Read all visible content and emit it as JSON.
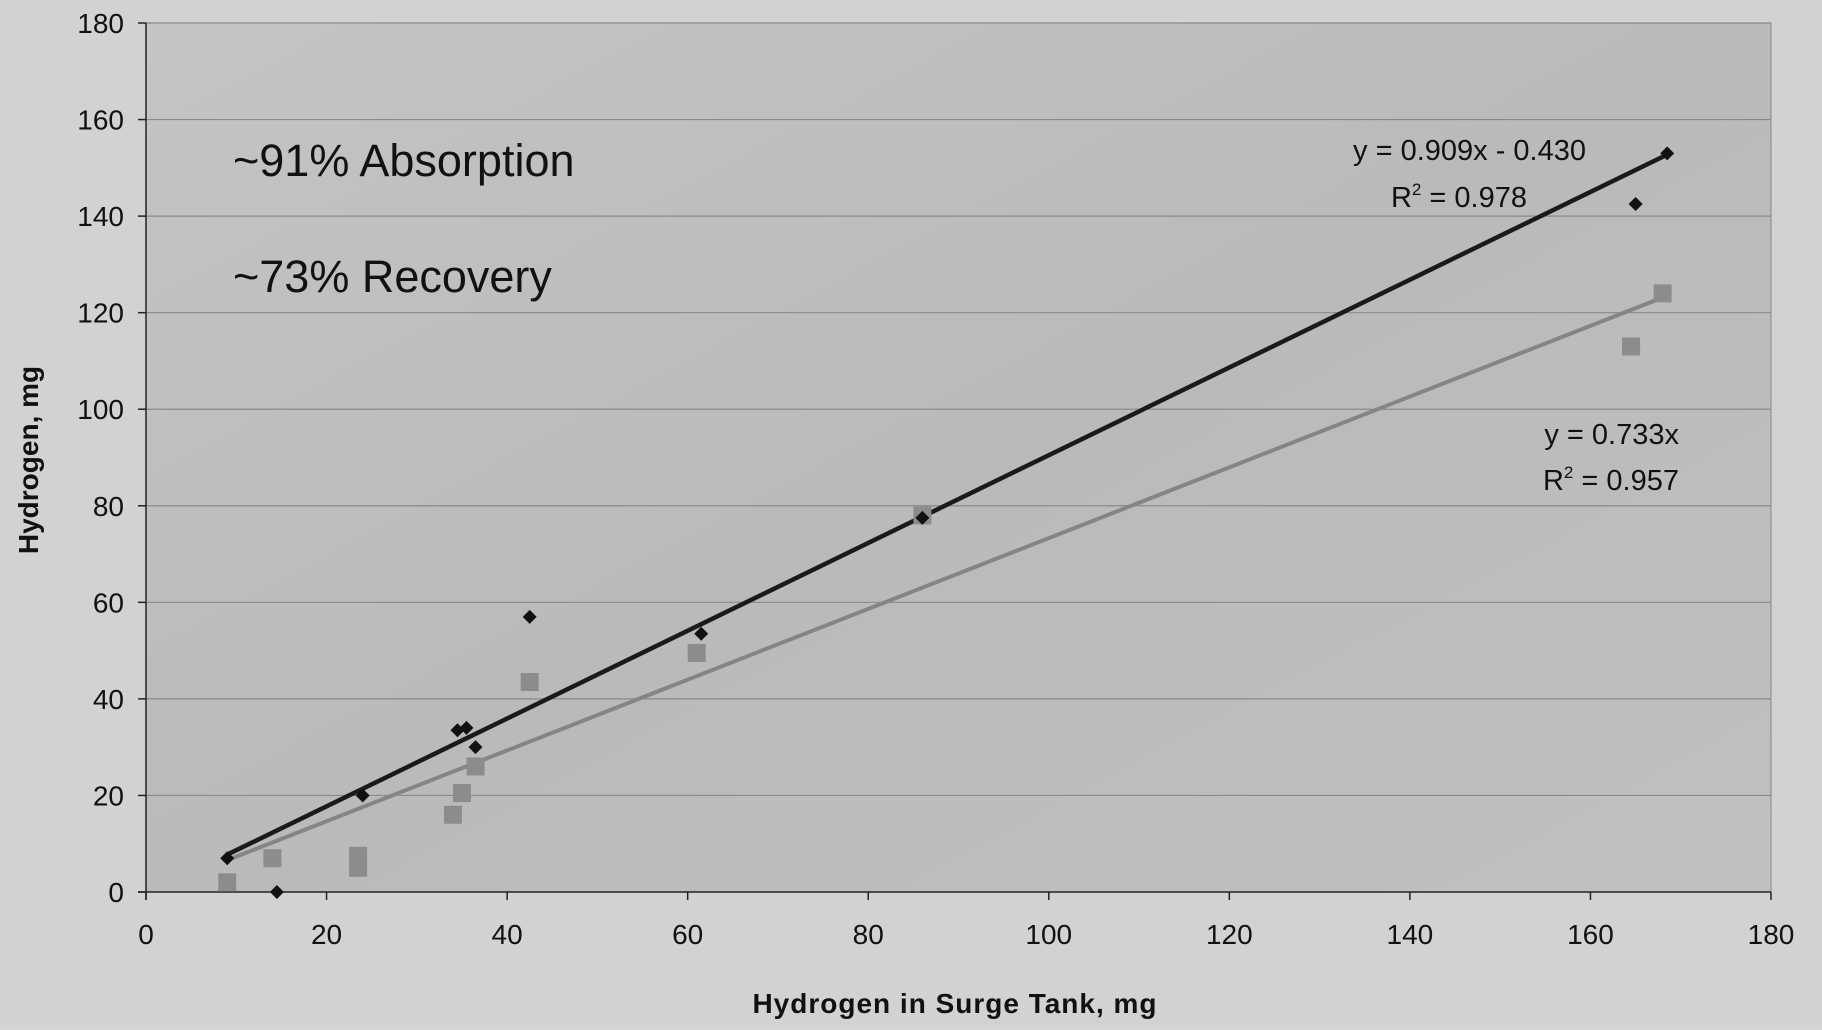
{
  "chart_data": {
    "type": "scatter",
    "title": "",
    "xlabel": "Hydrogen in Surge Tank, mg",
    "ylabel": "Hydrogen, mg",
    "xlim": [
      0,
      180
    ],
    "ylim": [
      0,
      180
    ],
    "x_ticks": [
      0,
      20,
      40,
      60,
      80,
      100,
      120,
      140,
      160,
      180
    ],
    "y_ticks": [
      0,
      20,
      40,
      60,
      80,
      100,
      120,
      140,
      160,
      180
    ],
    "grid": "horizontal",
    "legend": "none",
    "annotations": [
      "~91% Absorption",
      "~73% Recovery"
    ],
    "series": [
      {
        "marker": "diamond",
        "color": "#111111",
        "points": [
          [
            9,
            7
          ],
          [
            14.5,
            0
          ],
          [
            24,
            20
          ],
          [
            34.5,
            33.5
          ],
          [
            35.5,
            34
          ],
          [
            36.5,
            30
          ],
          [
            42.5,
            57
          ],
          [
            61.5,
            53.5
          ],
          [
            86,
            77.5
          ],
          [
            165,
            142.5
          ],
          [
            168.5,
            153
          ]
        ],
        "trendline": {
          "slope": 0.909,
          "intercept": -0.43,
          "x_range": [
            9,
            168.5
          ],
          "color": "#1a1a1a"
        },
        "equation": "y = 0.909x - 0.430",
        "r2_prefix": "R",
        "r2_exponent": "2",
        "r2_value": " = 0.978"
      },
      {
        "marker": "square",
        "color": "#8c8c8c",
        "points": [
          [
            9,
            2
          ],
          [
            14,
            7
          ],
          [
            23.5,
            5
          ],
          [
            23.5,
            7.5
          ],
          [
            34,
            16
          ],
          [
            35,
            20.5
          ],
          [
            36.5,
            26
          ],
          [
            42.5,
            43.5
          ],
          [
            61,
            49.5
          ],
          [
            86,
            78
          ],
          [
            164.5,
            113
          ],
          [
            168,
            124
          ]
        ],
        "trendline": {
          "slope": 0.733,
          "intercept": 0,
          "x_range": [
            9,
            168.5
          ],
          "color": "#858585"
        },
        "equation": "y = 0.733x",
        "r2_prefix": "R",
        "r2_exponent": "2",
        "r2_value": " = 0.957"
      }
    ],
    "colors": {
      "plot_background": "#bdbdbd",
      "page_background": "#d2d2d2",
      "grid": "#8a8a8a",
      "axis": "#222222"
    }
  }
}
